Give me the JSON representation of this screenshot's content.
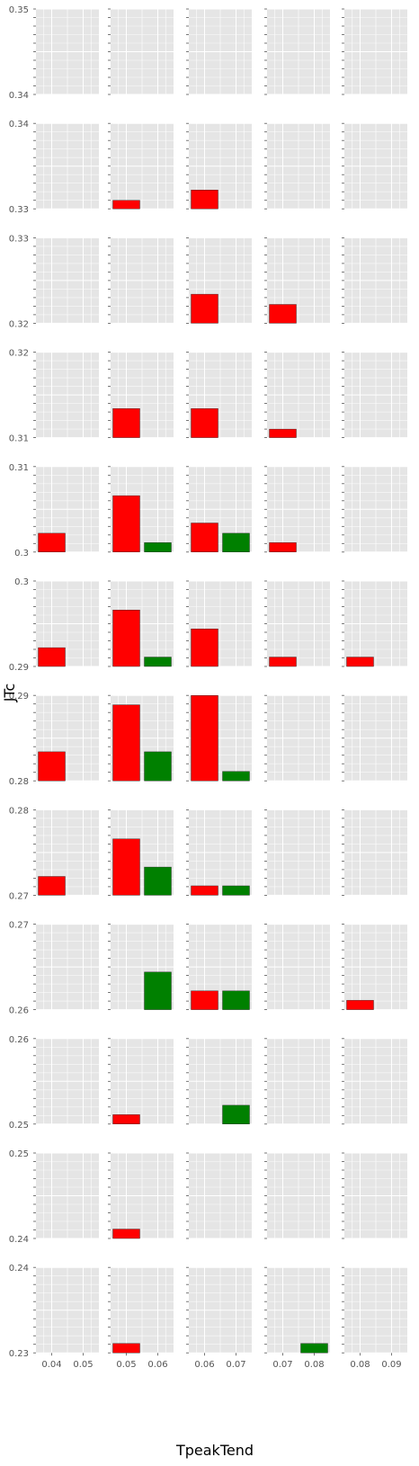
{
  "chart_data": {
    "type": "bar",
    "layout": "faceted grid: 12 rows (JTc ranges) x 5 columns (TpeakTend ranges)",
    "xlabel": "TpeakTend",
    "ylabel": "JTc",
    "panel_background": "#e5e5e5",
    "grid_color": "#ffffff",
    "colors": {
      "red": "#ff0000",
      "green": "#008000"
    },
    "rows": [
      {
        "ylim": [
          0.34,
          0.35
        ],
        "y_tick_labels": [
          "0.35",
          "0.34"
        ]
      },
      {
        "ylim": [
          0.33,
          0.34
        ],
        "y_tick_labels": [
          "0.34",
          "0.33"
        ]
      },
      {
        "ylim": [
          0.32,
          0.33
        ],
        "y_tick_labels": [
          "0.33",
          "0.32"
        ]
      },
      {
        "ylim": [
          0.31,
          0.32
        ],
        "y_tick_labels": [
          "0.32",
          "0.31"
        ]
      },
      {
        "ylim": [
          0.3,
          0.31
        ],
        "y_tick_labels": [
          "0.31",
          "0.3"
        ]
      },
      {
        "ylim": [
          0.29,
          0.3
        ],
        "y_tick_labels": [
          "0.3",
          "0.29"
        ]
      },
      {
        "ylim": [
          0.28,
          0.29
        ],
        "y_tick_labels": [
          "0.29",
          "0.28"
        ]
      },
      {
        "ylim": [
          0.27,
          0.28
        ],
        "y_tick_labels": [
          "0.28",
          "0.27"
        ]
      },
      {
        "ylim": [
          0.26,
          0.27
        ],
        "y_tick_labels": [
          "0.27",
          "0.26"
        ]
      },
      {
        "ylim": [
          0.25,
          0.26
        ],
        "y_tick_labels": [
          "0.26",
          "0.25"
        ]
      },
      {
        "ylim": [
          0.24,
          0.25
        ],
        "y_tick_labels": [
          "0.25",
          "0.24"
        ]
      },
      {
        "ylim": [
          0.23,
          0.24
        ],
        "y_tick_labels": [
          "0.24",
          "0.23"
        ]
      }
    ],
    "columns": [
      {
        "xlim": [
          0.035,
          0.055
        ],
        "x_ticks": [
          0.04,
          0.05
        ],
        "x_tick_labels": [
          "0.04",
          "0.05"
        ]
      },
      {
        "xlim": [
          0.045,
          0.065
        ],
        "x_ticks": [
          0.05,
          0.06
        ],
        "x_tick_labels": [
          "0.05",
          "0.06"
        ]
      },
      {
        "xlim": [
          0.055,
          0.075
        ],
        "x_ticks": [
          0.06,
          0.07
        ],
        "x_tick_labels": [
          "0.06",
          "0.07"
        ]
      },
      {
        "xlim": [
          0.065,
          0.085
        ],
        "x_ticks": [
          0.07,
          0.08
        ],
        "x_tick_labels": [
          "0.07",
          "0.08"
        ]
      },
      {
        "xlim": [
          0.075,
          0.095
        ],
        "x_ticks": [
          0.08,
          0.09
        ],
        "x_tick_labels": [
          "0.08",
          "0.09"
        ]
      }
    ],
    "bars": [
      {
        "row": 1,
        "col": 1,
        "x": 0.05,
        "top": 0.331,
        "color": "red"
      },
      {
        "row": 1,
        "col": 2,
        "x": 0.06,
        "top": 0.3322,
        "color": "red"
      },
      {
        "row": 2,
        "col": 2,
        "x": 0.06,
        "top": 0.3234,
        "color": "red"
      },
      {
        "row": 2,
        "col": 3,
        "x": 0.07,
        "top": 0.3222,
        "color": "red"
      },
      {
        "row": 3,
        "col": 1,
        "x": 0.05,
        "top": 0.3134,
        "color": "red"
      },
      {
        "row": 3,
        "col": 2,
        "x": 0.06,
        "top": 0.3134,
        "color": "red"
      },
      {
        "row": 3,
        "col": 3,
        "x": 0.07,
        "top": 0.311,
        "color": "red"
      },
      {
        "row": 4,
        "col": 0,
        "x": 0.04,
        "top": 0.3022,
        "color": "red"
      },
      {
        "row": 4,
        "col": 1,
        "x": 0.05,
        "top": 0.3066,
        "color": "red"
      },
      {
        "row": 4,
        "col": 1,
        "x": 0.06,
        "top": 0.3011,
        "color": "green"
      },
      {
        "row": 4,
        "col": 2,
        "x": 0.06,
        "top": 0.3034,
        "color": "red"
      },
      {
        "row": 4,
        "col": 2,
        "x": 0.07,
        "top": 0.3022,
        "color": "green"
      },
      {
        "row": 4,
        "col": 3,
        "x": 0.07,
        "top": 0.3011,
        "color": "red"
      },
      {
        "row": 5,
        "col": 0,
        "x": 0.04,
        "top": 0.2922,
        "color": "red"
      },
      {
        "row": 5,
        "col": 1,
        "x": 0.05,
        "top": 0.2966,
        "color": "red"
      },
      {
        "row": 5,
        "col": 1,
        "x": 0.06,
        "top": 0.2911,
        "color": "green"
      },
      {
        "row": 5,
        "col": 2,
        "x": 0.06,
        "top": 0.2944,
        "color": "red"
      },
      {
        "row": 5,
        "col": 3,
        "x": 0.07,
        "top": 0.2911,
        "color": "red"
      },
      {
        "row": 5,
        "col": 4,
        "x": 0.08,
        "top": 0.2911,
        "color": "red"
      },
      {
        "row": 6,
        "col": 0,
        "x": 0.04,
        "top": 0.2834,
        "color": "red"
      },
      {
        "row": 6,
        "col": 1,
        "x": 0.05,
        "top": 0.2889,
        "color": "red"
      },
      {
        "row": 6,
        "col": 1,
        "x": 0.06,
        "top": 0.2834,
        "color": "green"
      },
      {
        "row": 6,
        "col": 2,
        "x": 0.06,
        "top": 0.29,
        "color": "red"
      },
      {
        "row": 6,
        "col": 2,
        "x": 0.07,
        "top": 0.2811,
        "color": "green"
      },
      {
        "row": 7,
        "col": 0,
        "x": 0.04,
        "top": 0.2722,
        "color": "red"
      },
      {
        "row": 7,
        "col": 1,
        "x": 0.05,
        "top": 0.2766,
        "color": "red"
      },
      {
        "row": 7,
        "col": 1,
        "x": 0.06,
        "top": 0.2733,
        "color": "green"
      },
      {
        "row": 7,
        "col": 2,
        "x": 0.06,
        "top": 0.2711,
        "color": "red"
      },
      {
        "row": 7,
        "col": 2,
        "x": 0.07,
        "top": 0.2711,
        "color": "green"
      },
      {
        "row": 8,
        "col": 1,
        "x": 0.06,
        "top": 0.2644,
        "color": "green"
      },
      {
        "row": 8,
        "col": 2,
        "x": 0.06,
        "top": 0.2622,
        "color": "red"
      },
      {
        "row": 8,
        "col": 2,
        "x": 0.07,
        "top": 0.2622,
        "color": "green"
      },
      {
        "row": 8,
        "col": 4,
        "x": 0.08,
        "top": 0.2611,
        "color": "red"
      },
      {
        "row": 9,
        "col": 1,
        "x": 0.05,
        "top": 0.2511,
        "color": "red"
      },
      {
        "row": 9,
        "col": 2,
        "x": 0.07,
        "top": 0.2522,
        "color": "green"
      },
      {
        "row": 10,
        "col": 1,
        "x": 0.05,
        "top": 0.2411,
        "color": "red"
      },
      {
        "row": 11,
        "col": 1,
        "x": 0.05,
        "top": 0.2311,
        "color": "red"
      },
      {
        "row": 11,
        "col": 3,
        "x": 0.08,
        "top": 0.2311,
        "color": "green"
      }
    ]
  }
}
